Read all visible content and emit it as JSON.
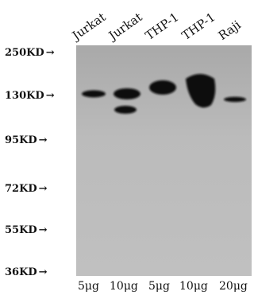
{
  "lanes": [
    {
      "label": "Jurkat",
      "amount": "5μg"
    },
    {
      "label": "Jurkat",
      "amount": "10μg"
    },
    {
      "label": "THP-1",
      "amount": "5μg"
    },
    {
      "label": "THP-1",
      "amount": "10μg"
    },
    {
      "label": "Raji",
      "amount": "20μg"
    }
  ],
  "markers": [
    "250KD",
    "130KD",
    "95KD",
    "72KD",
    "55KD",
    "36KD"
  ],
  "colors": {
    "membrane": "#b9b9b9",
    "band": "#111111"
  }
}
